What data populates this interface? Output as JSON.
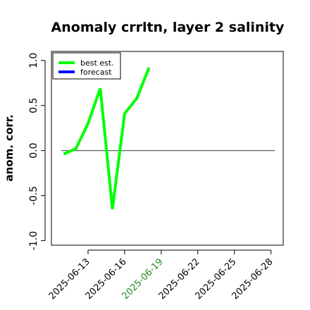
{
  "chart_data": {
    "type": "line",
    "title": "Anomaly crrltn, layer 2 salinity",
    "ylabel": "anom. corr.",
    "xlabel": "",
    "ylim": [
      -1.05,
      1.1
    ],
    "yticks": [
      -1.0,
      -0.5,
      0.0,
      0.5,
      1.0
    ],
    "ytick_labels": [
      "-1.0",
      "-0.5",
      "0.0",
      "0.5",
      "1.0"
    ],
    "xlim": [
      "2025-06-10",
      "2025-06-29"
    ],
    "xticks": [
      "2025-06-13",
      "2025-06-16",
      "2025-06-19",
      "2025-06-22",
      "2025-06-25",
      "2025-06-28"
    ],
    "xtick_labels": [
      "2025-06-13",
      "2025-06-16",
      "2025-06-19",
      "2025-06-22",
      "2025-06-25",
      "2025-06-28"
    ],
    "highlight_tick": "2025-06-19",
    "highlight_color": "#228b22",
    "reference_line": 0.0,
    "series": [
      {
        "name": "best est.",
        "color": "#00ff00",
        "x": [
          "2025-06-11",
          "2025-06-12",
          "2025-06-13",
          "2025-06-14",
          "2025-06-15",
          "2025-06-16",
          "2025-06-17",
          "2025-06-18",
          "2025-06-19"
        ],
        "y": [
          -0.04,
          0.02,
          0.3,
          0.69,
          -0.65,
          0.41,
          0.58,
          0.92,
          null
        ]
      },
      {
        "name": "forecast",
        "color": "#0000ff",
        "x": [],
        "y": []
      }
    ],
    "legend": "top-left"
  }
}
